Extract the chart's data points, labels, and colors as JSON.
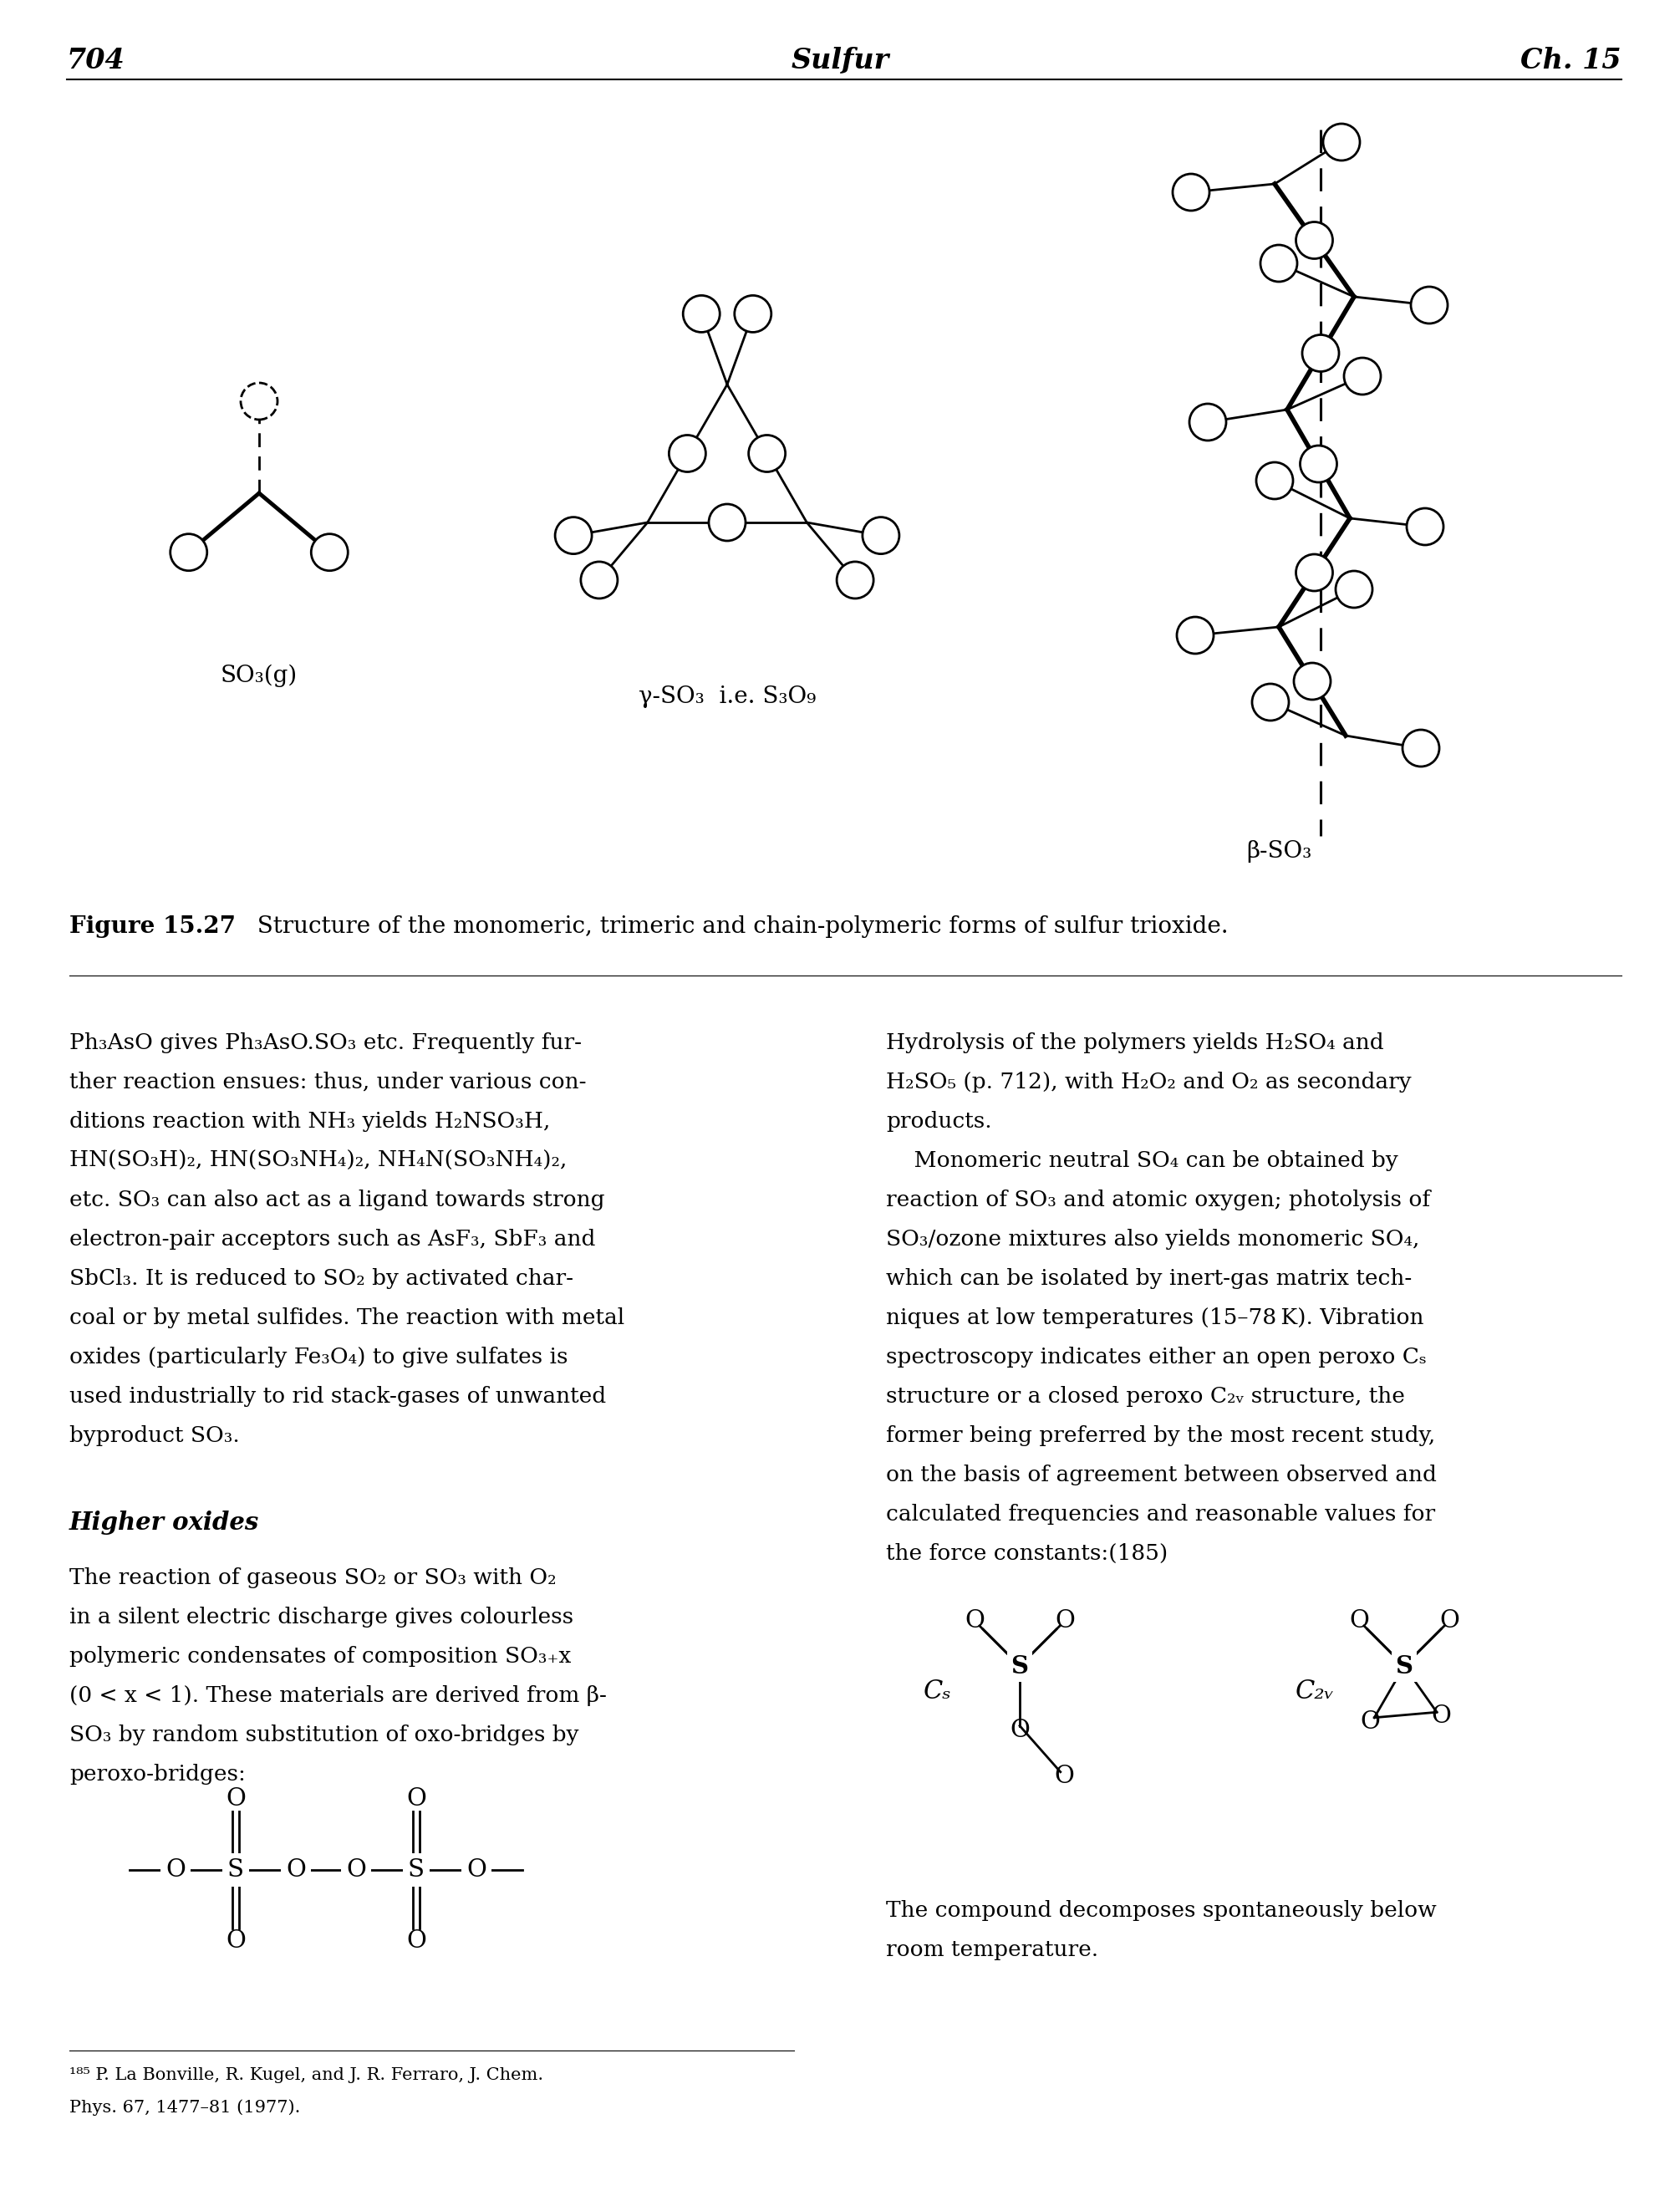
{
  "page_num": "704",
  "chapter": "Sulfur",
  "ch_num": "Ch. 15",
  "fig_label": "Figure 15.27",
  "fig_caption": "  Structure of the monomeric, trimeric and chain-polymeric forms of sulfur trioxide.",
  "label_mono": "SO₃(g)",
  "label_tri": "γ-SO₃  i.e. S₃O₉",
  "label_poly": "β-SO₃",
  "bg_color": "#ffffff",
  "left_col_lines": [
    "Ph₃AsO gives Ph₃AsO.SO₃ etc. Frequently fur-",
    "ther reaction ensues: thus, under various con-",
    "ditions reaction with NH₃ yields H₂NSO₃H,",
    "HN(SO₃H)₂, HN(SO₃NH₄)₂, NH₄N(SO₃NH₄)₂,",
    "etc. SO₃ can also act as a ligand towards strong",
    "electron-pair acceptors such as AsF₃, SbF₃ and",
    "SbCl₃. It is reduced to SO₂ by activated char-",
    "coal or by metal sulfides. The reaction with metal",
    "oxides (particularly Fe₃O₄) to give sulfates is",
    "used industrially to rid stack-gases of unwanted",
    "byproduct SO₃."
  ],
  "right_col_lines": [
    "Hydrolysis of the polymers yields H₂SO₄ and",
    "H₂SO₅ (p. 712), with H₂O₂ and O₂ as secondary",
    "products.",
    "    Monomeric neutral SO₄ can be obtained by",
    "reaction of SO₃ and atomic oxygen; photolysis of",
    "SO₃/ozone mixtures also yields monomeric SO₄,",
    "which can be isolated by inert-gas matrix tech-",
    "niques at low temperatures (15–78 K). Vibration",
    "spectroscopy indicates either an open peroxo Cₛ",
    "structure or a closed peroxo C₂ᵥ structure, the",
    "former being preferred by the most recent study,",
    "on the basis of agreement between observed and",
    "calculated frequencies and reasonable values for",
    "the force constants:(185)"
  ],
  "higher_oxides_title": "Higher oxides",
  "higher_oxides_lines": [
    "The reaction of gaseous SO₂ or SO₃ with O₂",
    "in a silent electric discharge gives colourless",
    "polymeric condensates of composition SO₃₊x",
    "(0 < x < 1). These materials are derived from β-",
    "SO₃ by random substitution of oxo-bridges by",
    "peroxo-bridges:"
  ],
  "decomp_lines": [
    "The compound decomposes spontaneously below",
    "room temperature."
  ],
  "fn_line1": "¹⁸⁵ P. La Bonville, R. Kugel, and J. R. Ferraro, J. Chem.",
  "fn_line2": "Phys. 67, 1477–81 (1977)."
}
